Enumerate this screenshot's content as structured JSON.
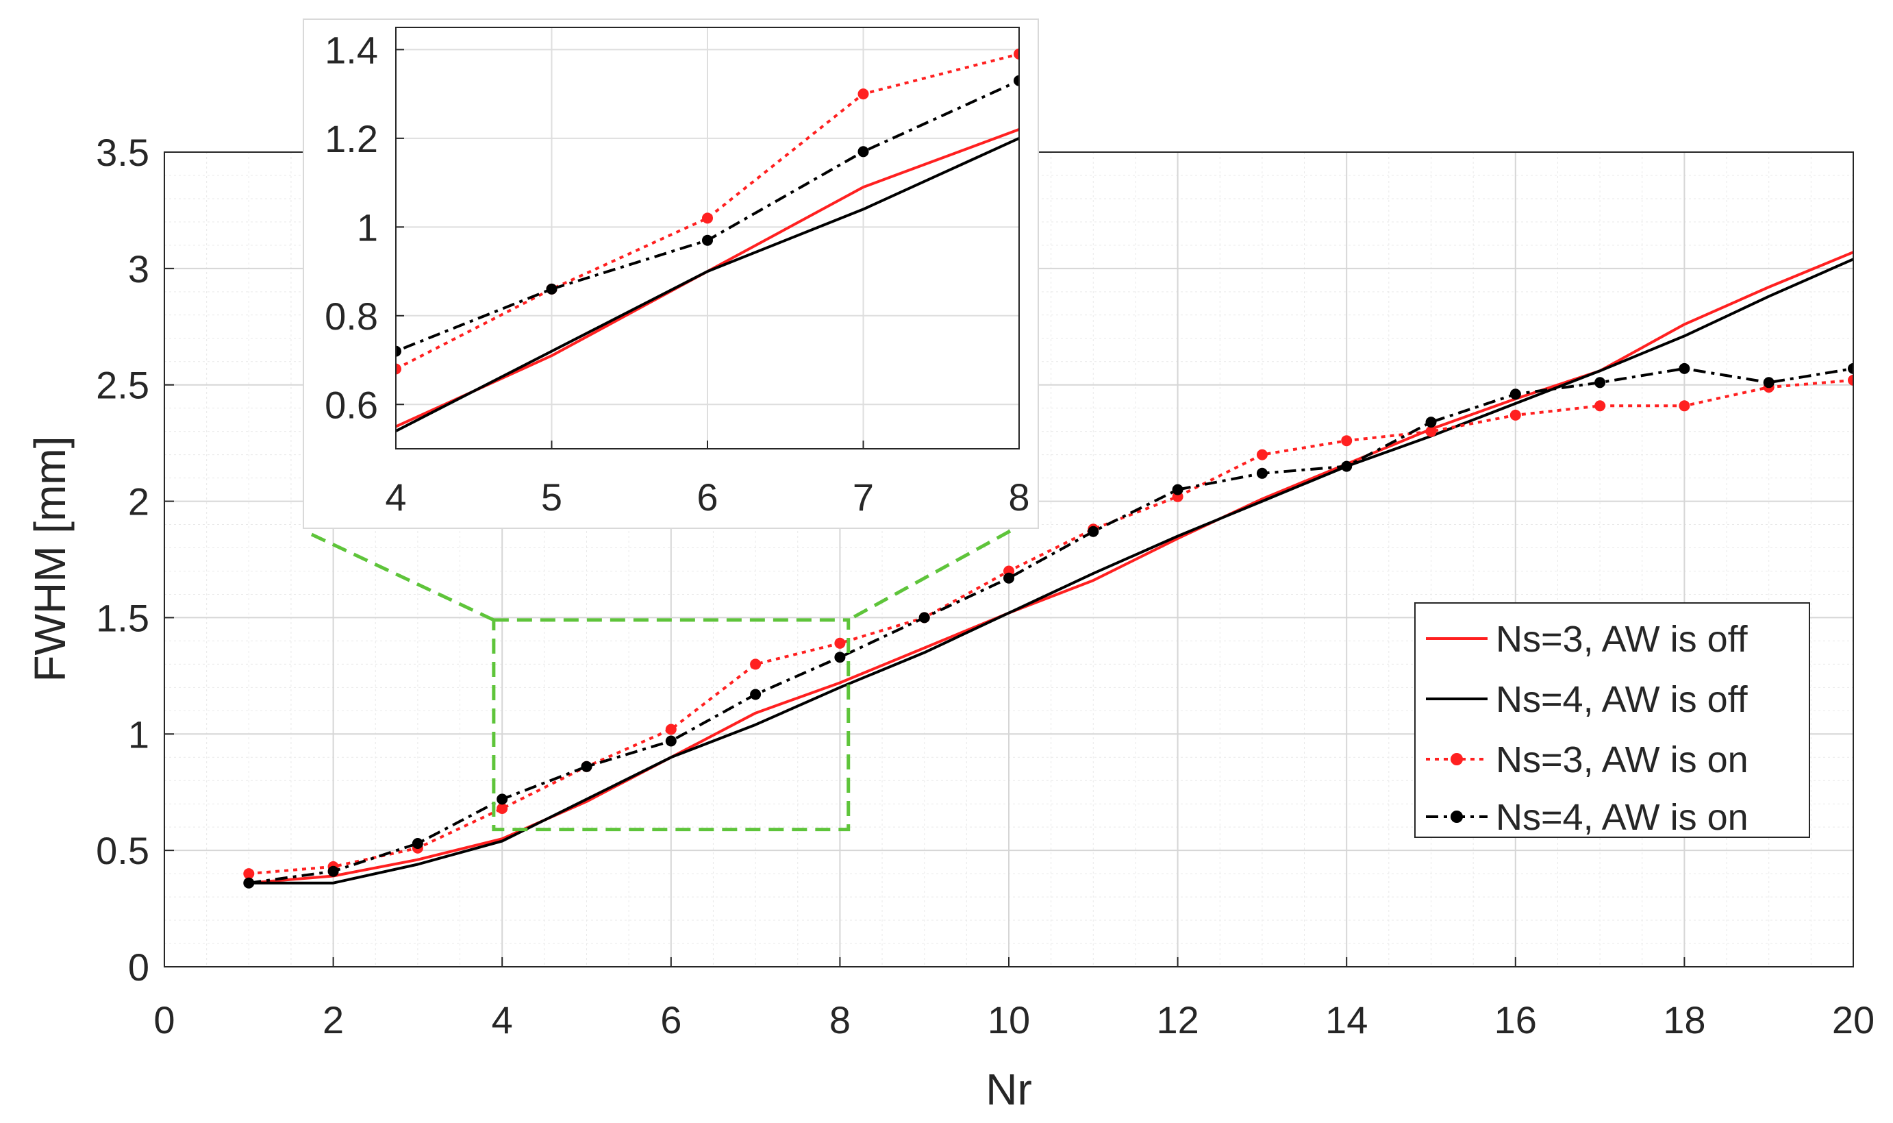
{
  "chart_data": {
    "type": "line",
    "title": "",
    "xlabel": "Nr",
    "ylabel": "FWHM [mm]",
    "xlim": [
      0,
      20
    ],
    "ylim": [
      0,
      3.5
    ],
    "xticks": [
      0,
      2,
      4,
      6,
      8,
      10,
      12,
      14,
      16,
      18,
      20
    ],
    "yticks": [
      0,
      0.5,
      1,
      1.5,
      2,
      2.5,
      3,
      3.5
    ],
    "xtick_labels": [
      "0",
      "2",
      "4",
      "6",
      "8",
      "10",
      "12",
      "14",
      "16",
      "18",
      "20"
    ],
    "ytick_labels": [
      "0",
      "0.5",
      "1",
      "1.5",
      "2",
      "2.5",
      "3",
      "3.5"
    ],
    "grid": true,
    "minor_grid": true,
    "legend_position": "right",
    "x": [
      1,
      2,
      3,
      4,
      5,
      6,
      7,
      8,
      9,
      10,
      11,
      12,
      13,
      14,
      15,
      16,
      17,
      18,
      19,
      20
    ],
    "series": [
      {
        "name": "Ns=3, AW is off",
        "color": "#ff2020",
        "line_style": "solid",
        "marker": "none",
        "values": [
          0.36,
          0.39,
          0.46,
          0.55,
          0.71,
          0.9,
          1.09,
          1.22,
          1.37,
          1.52,
          1.66,
          1.84,
          2.01,
          2.16,
          2.31,
          2.44,
          2.56,
          2.76,
          2.92,
          3.07
        ]
      },
      {
        "name": "Ns=4, AW is off",
        "color": "#000000",
        "line_style": "solid",
        "marker": "none",
        "values": [
          0.36,
          0.36,
          0.44,
          0.54,
          0.72,
          0.9,
          1.04,
          1.2,
          1.35,
          1.52,
          1.69,
          1.85,
          2.0,
          2.15,
          2.28,
          2.42,
          2.56,
          2.71,
          2.88,
          3.04
        ]
      },
      {
        "name": "Ns=3, AW is on",
        "color": "#ff2020",
        "line_style": "dotted",
        "marker": "dot",
        "values": [
          0.4,
          0.43,
          0.51,
          0.68,
          0.86,
          1.02,
          1.3,
          1.39,
          1.5,
          1.7,
          1.88,
          2.02,
          2.2,
          2.26,
          2.3,
          2.37,
          2.41,
          2.41,
          2.49,
          2.52
        ]
      },
      {
        "name": "Ns=4, AW is on",
        "color": "#000000",
        "line_style": "dashdot",
        "marker": "dot",
        "values": [
          0.36,
          0.41,
          0.53,
          0.72,
          0.86,
          0.97,
          1.17,
          1.33,
          1.5,
          1.67,
          1.87,
          2.05,
          2.12,
          2.15,
          2.34,
          2.46,
          2.51,
          2.57,
          2.51,
          2.57
        ]
      }
    ],
    "zoom_region": {
      "xlim": [
        3.9,
        8.1
      ],
      "ylim": [
        0.59,
        1.49
      ],
      "color": "#5ec43a"
    },
    "inset": {
      "xlim": [
        4,
        8
      ],
      "ylim": [
        0.5,
        1.45
      ],
      "xticks": [
        4,
        5,
        6,
        7,
        8
      ],
      "yticks": [
        0.6,
        0.8,
        1,
        1.2,
        1.4
      ],
      "xtick_labels": [
        "4",
        "5",
        "6",
        "7",
        "8"
      ],
      "ytick_labels": [
        "0.6",
        "0.8",
        "1",
        "1.2",
        "1.4"
      ],
      "grid": true
    }
  }
}
